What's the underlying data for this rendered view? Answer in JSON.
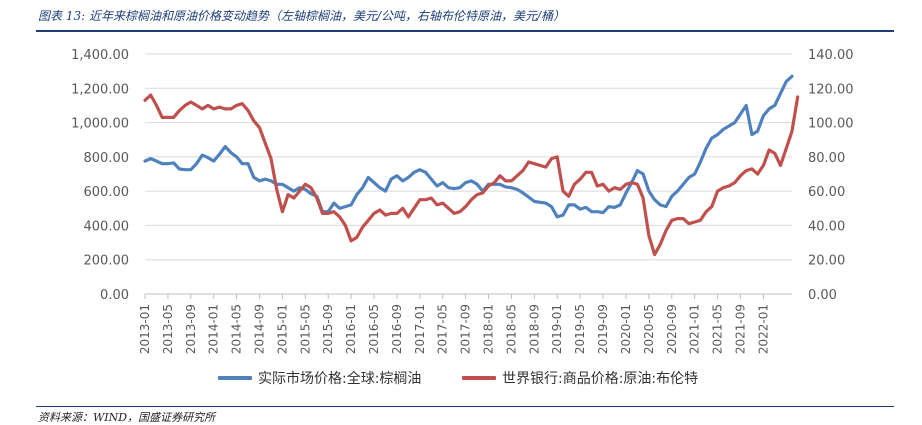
{
  "title": "图表 13:  近年来棕榈油和原油价格变动趋势（左轴棕榈油，美元/公吨，右轴布伦特原油，美元/桶）",
  "source": "资料来源：WIND，国盛证券研究所",
  "chart_data": {
    "type": "line",
    "y_left": {
      "ylim": [
        0,
        1400
      ],
      "ticks": [
        "0.00",
        "200.00",
        "400.00",
        "600.00",
        "800.00",
        "1,000.00",
        "1,200.00",
        "1,400.00"
      ]
    },
    "y_right": {
      "ylim": [
        0,
        140
      ],
      "ticks": [
        "0.00",
        "20.00",
        "40.00",
        "60.00",
        "80.00",
        "100.00",
        "120.00",
        "140.00"
      ]
    },
    "x_ticks": [
      "2013-01",
      "2013-05",
      "2013-09",
      "2014-01",
      "2014-05",
      "2014-09",
      "2015-01",
      "2015-05",
      "2015-09",
      "2016-01",
      "2016-05",
      "2016-09",
      "2017-01",
      "2017-05",
      "2017-09",
      "2018-01",
      "2018-05",
      "2018-09",
      "2019-01",
      "2019-05",
      "2019-09",
      "2020-01",
      "2020-05",
      "2020-09",
      "2021-01",
      "2021-05",
      "2021-09",
      "2022-01"
    ],
    "x_start": "2013-01",
    "grid": "horizontal",
    "legend_position": "bottom",
    "series": [
      {
        "name": "实际市场价格:全球:棕榈油",
        "axis": "left",
        "color": "#4f81bd",
        "values": [
          775,
          790,
          775,
          760,
          760,
          765,
          730,
          725,
          725,
          760,
          810,
          795,
          775,
          815,
          860,
          825,
          800,
          760,
          760,
          680,
          660,
          670,
          660,
          640,
          640,
          620,
          600,
          620,
          610,
          585,
          570,
          480,
          480,
          530,
          500,
          510,
          520,
          580,
          620,
          680,
          650,
          620,
          600,
          670,
          690,
          660,
          680,
          710,
          725,
          710,
          670,
          630,
          650,
          620,
          615,
          620,
          650,
          660,
          640,
          600,
          640,
          640,
          640,
          625,
          620,
          610,
          590,
          565,
          540,
          535,
          530,
          510,
          450,
          460,
          520,
          520,
          495,
          505,
          480,
          480,
          475,
          510,
          505,
          520,
          590,
          650,
          720,
          700,
          600,
          550,
          520,
          510,
          570,
          600,
          640,
          680,
          700,
          770,
          850,
          910,
          930,
          960,
          980,
          1000,
          1050,
          1100,
          930,
          950,
          1040,
          1080,
          1100,
          1170,
          1240,
          1270
        ]
      },
      {
        "name": "世界银行:商品价格:原油:布伦特",
        "axis": "right",
        "color": "#c0504d",
        "values": [
          113,
          116,
          110,
          103,
          103,
          103,
          107,
          110,
          112,
          110,
          108,
          110,
          108,
          109,
          108,
          108,
          110,
          111,
          107,
          101,
          97,
          88,
          79,
          61,
          48,
          58,
          56,
          60,
          64,
          62,
          56,
          47,
          47,
          48,
          45,
          40,
          31,
          33,
          39,
          43,
          47,
          49,
          46,
          47,
          47,
          50,
          45,
          50,
          55,
          55,
          56,
          52,
          53,
          50,
          47,
          48,
          51,
          55,
          58,
          59,
          63,
          65,
          69,
          66,
          66,
          69,
          72,
          77,
          76,
          75,
          74,
          79,
          80,
          60,
          57,
          64,
          67,
          71,
          71,
          63,
          64,
          60,
          62,
          61,
          64,
          65,
          64,
          56,
          34,
          23,
          29,
          37,
          43,
          44,
          44,
          41,
          42,
          43,
          48,
          51,
          60,
          62,
          63,
          65,
          69,
          72,
          73,
          70,
          75,
          84,
          82,
          75,
          85,
          95,
          115
        ]
      }
    ]
  }
}
